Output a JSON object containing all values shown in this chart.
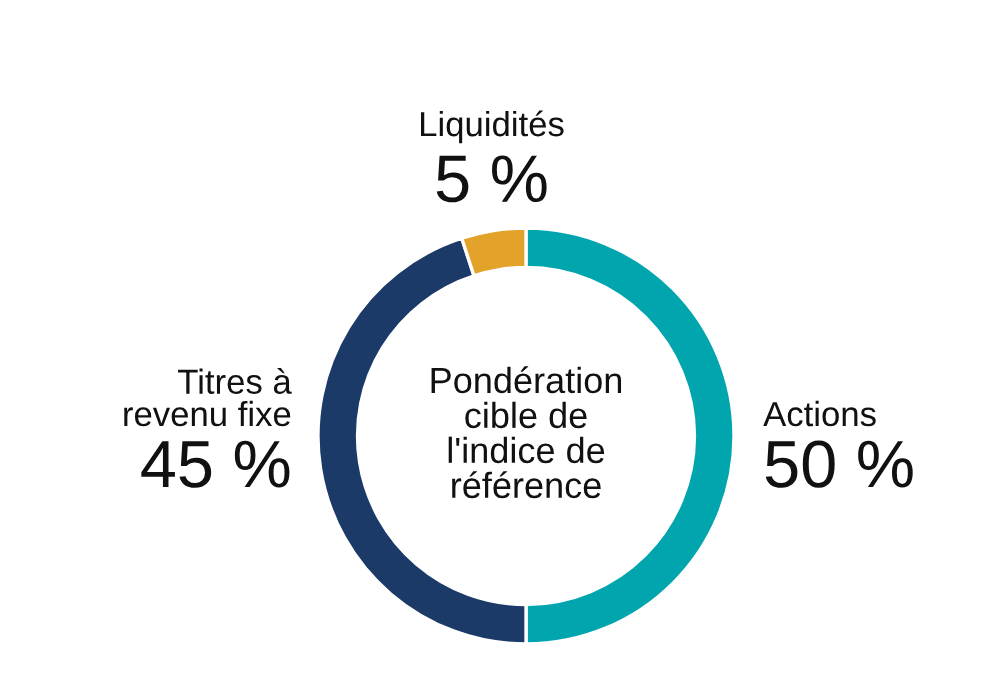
{
  "chart_data": {
    "type": "donut",
    "categories": [
      "Actions",
      "Titres à\nrevenu fixe",
      "Liquidités"
    ],
    "values": [
      50,
      45,
      5
    ],
    "colors": [
      "#00a5ae",
      "#1b3a68",
      "#e3a22a"
    ],
    "value_labels": [
      "50 %",
      "45 %",
      "5 %"
    ],
    "annotations": [
      "Pondération\ncible de\nl'indice de\nréférence"
    ],
    "legend": false
  }
}
